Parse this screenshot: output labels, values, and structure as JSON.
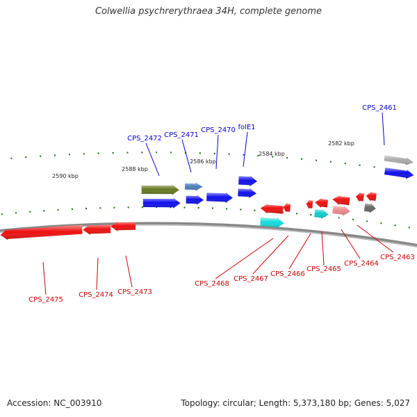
{
  "title": "Colwellia psychrerythraea 34H, complete genome",
  "footer": {
    "accession": "Accession: NC_003910",
    "summary": "Topology: circular; Length: 5,373,180 bp; Genes: 5,027"
  },
  "scale_labels": [
    "2590 kbp",
    "2588 kbp",
    "2586 kbp",
    "2584 kbp",
    "2582 kbp"
  ],
  "colors": {
    "forward_label": "#0000cc",
    "reverse_label": "#cc0000",
    "backbone": "#888888",
    "tick": "#1a7a1a"
  },
  "genes_forward": [
    {
      "label": "CPS_2461",
      "color": "#aaaaaa"
    },
    {
      "label": "",
      "color": "#1010ee"
    },
    {
      "label": "folE1",
      "color": "#1010ee"
    },
    {
      "label": "",
      "color": "#1010ee"
    },
    {
      "label": "CPS_2470",
      "color": "#1010ee"
    },
    {
      "label": "CPS_2471",
      "color": "#4a7fbf"
    },
    {
      "label": "",
      "color": "#1010ee"
    },
    {
      "label": "CPS_2472",
      "color": "#667a22"
    },
    {
      "label": "",
      "color": "#1010ee"
    }
  ],
  "genes_reverse": [
    {
      "label": "CPS_2463",
      "color": "#ee1010"
    },
    {
      "label": "",
      "color": "#666666"
    },
    {
      "label": "",
      "color": "#ee1010"
    },
    {
      "label": "CPS_2464",
      "color": "#ee1010"
    },
    {
      "label": "",
      "color": "#ee8a8a"
    },
    {
      "label": "CPS_2465",
      "color": "#ee1010"
    },
    {
      "label": "",
      "color": "#10cccc"
    },
    {
      "label": "CPS_2466",
      "color": "#ee1010"
    },
    {
      "label": "CPS_2467",
      "color": "#ee1010"
    },
    {
      "label": "CPS_2468",
      "color": "#10dddd"
    },
    {
      "label": "CPS_2473",
      "color": "#ee1010"
    },
    {
      "label": "CPS_2474",
      "color": "#ee1010"
    },
    {
      "label": "CPS_2475",
      "color": "#ee1010"
    }
  ]
}
